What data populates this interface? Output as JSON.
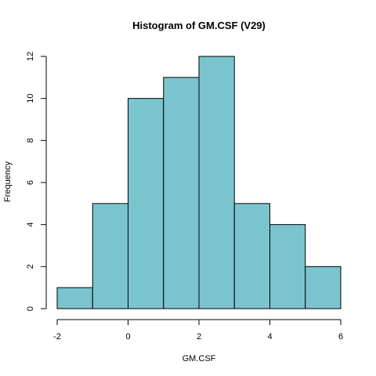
{
  "chart_data": {
    "type": "bar",
    "subtype": "histogram",
    "title": "Histogram of GM.CSF (V29)",
    "xlabel": "GM.CSF",
    "ylabel": "Frequency",
    "bin_edges": [
      -2,
      -1,
      0,
      1,
      2,
      3,
      4,
      5,
      6
    ],
    "values": [
      1,
      5,
      10,
      11,
      12,
      5,
      4,
      2
    ],
    "xlim": [
      -2,
      6
    ],
    "ylim": [
      0,
      12
    ],
    "x_ticks": [
      -2,
      0,
      2,
      4,
      6
    ],
    "y_ticks": [
      0,
      2,
      4,
      6,
      8,
      10,
      12
    ],
    "bar_color": "#7AC5CD",
    "border_color": "#000000",
    "grid": false,
    "legend": "none"
  }
}
